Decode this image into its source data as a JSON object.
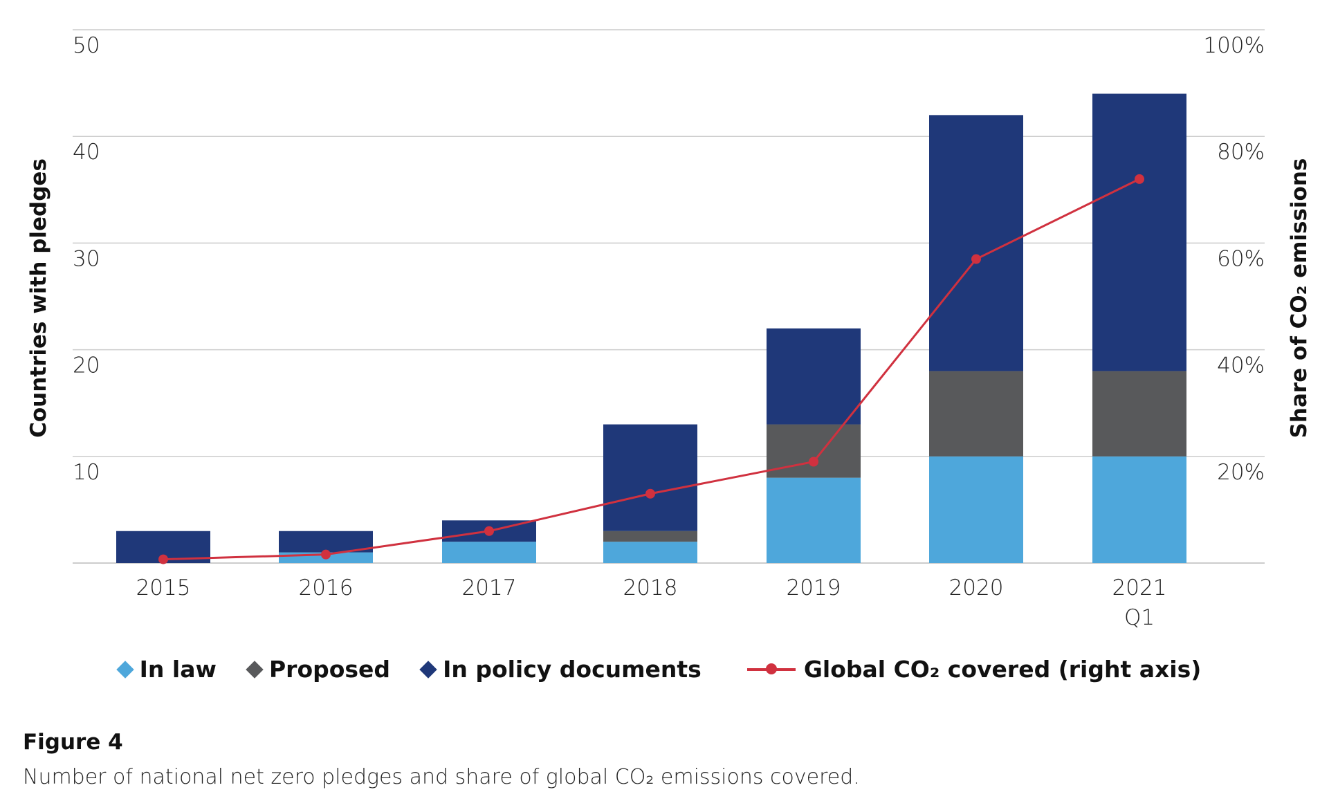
{
  "chart_data": {
    "type": "bar",
    "stacked": true,
    "categories": [
      "2015",
      "2016",
      "2017",
      "2018",
      "2019",
      "2020",
      "2021\nQ1"
    ],
    "category_labels": [
      [
        "2015"
      ],
      [
        "2016"
      ],
      [
        "2017"
      ],
      [
        "2018"
      ],
      [
        "2019"
      ],
      [
        "2020"
      ],
      [
        "2021",
        "Q1"
      ]
    ],
    "series": [
      {
        "name": "In law",
        "color": "#4ea7db",
        "values": [
          0,
          1,
          2,
          2,
          8,
          10,
          10
        ]
      },
      {
        "name": "Proposed",
        "color": "#58595b",
        "values": [
          0,
          0,
          0,
          1,
          5,
          8,
          8
        ]
      },
      {
        "name": "In policy documents",
        "color": "#1f3879",
        "values": [
          3,
          2,
          2,
          10,
          9,
          24,
          26
        ]
      }
    ],
    "line_series": {
      "name": "Global CO₂ covered (right axis)",
      "color": "#d0313f",
      "axis": "right",
      "values": [
        0.7,
        1.6,
        6,
        13,
        19,
        57,
        72
      ]
    },
    "ylabel": "Countries with pledges",
    "ylabel_right": "Share of CO₂ emissions",
    "ylim": [
      0,
      50
    ],
    "ylim_right": [
      0,
      100
    ],
    "yticks": [
      "10",
      "20",
      "30",
      "40",
      "50"
    ],
    "yticks_right": [
      "20%",
      "40%",
      "60%",
      "80%",
      "100%"
    ],
    "grid": true,
    "legend_position": "bottom"
  },
  "figure": {
    "title": "Figure 4",
    "caption": "Number of national net zero pledges and share of global CO₂ emissions covered."
  }
}
